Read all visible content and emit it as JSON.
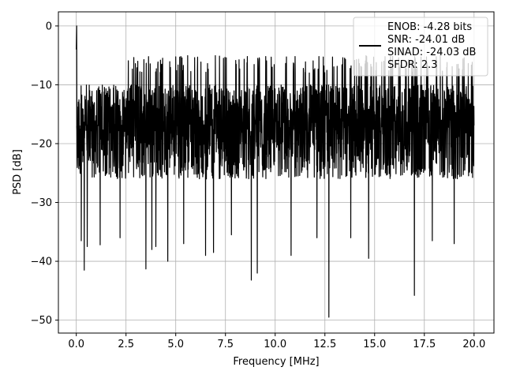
{
  "chart_data": {
    "type": "line",
    "title": "",
    "xlabel": "Frequency [MHz]",
    "ylabel": "PSD [dB]",
    "xlim": [
      -0.9,
      21.0
    ],
    "ylim": [
      -52.2,
      2.4
    ],
    "x_ticks": [
      0.0,
      2.5,
      5.0,
      7.5,
      10.0,
      12.5,
      15.0,
      17.5,
      20.0
    ],
    "x_tick_labels": [
      "0.0",
      "2.5",
      "5.0",
      "7.5",
      "10.0",
      "12.5",
      "15.0",
      "17.5",
      "20.0"
    ],
    "y_ticks": [
      0,
      -10,
      -20,
      -30,
      -40,
      -50
    ],
    "y_tick_labels": [
      "0",
      "−10",
      "−20",
      "−30",
      "−40",
      "−50"
    ],
    "grid": true,
    "legend_position": "top-right",
    "legend_lines": [
      "ENOB: -4.28 bits",
      "SNR: -24.01 dB",
      "SINAD: -24.03 dB",
      "SFDR: 2.3"
    ],
    "series": [
      {
        "color": "#000000",
        "x_range": [
          0.0,
          20.0
        ],
        "envelope_note_free": true,
        "peak": {
          "x": 0.02,
          "y": 0.0
        },
        "typical_upper_dB": -10,
        "typical_lower_dB": -26,
        "noise_floor_median_dB": -17,
        "notable_dips": [
          {
            "x": 0.25,
            "y": -36.5
          },
          {
            "x": 0.4,
            "y": -41.5
          },
          {
            "x": 0.55,
            "y": -37.5
          },
          {
            "x": 1.2,
            "y": -37.2
          },
          {
            "x": 2.2,
            "y": -36.0
          },
          {
            "x": 3.5,
            "y": -41.3
          },
          {
            "x": 3.8,
            "y": -38.0
          },
          {
            "x": 4.0,
            "y": -37.5
          },
          {
            "x": 4.6,
            "y": -40.0
          },
          {
            "x": 5.4,
            "y": -37.0
          },
          {
            "x": 6.5,
            "y": -39.0
          },
          {
            "x": 6.9,
            "y": -38.5
          },
          {
            "x": 7.8,
            "y": -35.5
          },
          {
            "x": 8.8,
            "y": -43.2
          },
          {
            "x": 9.1,
            "y": -42.0
          },
          {
            "x": 10.8,
            "y": -39.0
          },
          {
            "x": 12.1,
            "y": -36.0
          },
          {
            "x": 12.7,
            "y": -49.5
          },
          {
            "x": 13.8,
            "y": -36.0
          },
          {
            "x": 14.7,
            "y": -39.5
          },
          {
            "x": 17.0,
            "y": -45.8
          },
          {
            "x": 17.9,
            "y": -36.5
          },
          {
            "x": 19.0,
            "y": -37.0
          }
        ],
        "notable_peaks": [
          {
            "x": 3.2,
            "y": -7.8
          },
          {
            "x": 4.3,
            "y": -6.5
          },
          {
            "x": 5.2,
            "y": -5.3
          },
          {
            "x": 6.1,
            "y": -5.3
          },
          {
            "x": 7.4,
            "y": -5.5
          },
          {
            "x": 8.6,
            "y": -5.2
          },
          {
            "x": 9.8,
            "y": -5.3
          },
          {
            "x": 11.0,
            "y": -5.2
          },
          {
            "x": 12.2,
            "y": -5.2
          },
          {
            "x": 13.4,
            "y": -5.4
          },
          {
            "x": 14.6,
            "y": -5.2
          },
          {
            "x": 15.8,
            "y": -5.1
          },
          {
            "x": 17.0,
            "y": -5.3
          },
          {
            "x": 18.3,
            "y": -5.0
          },
          {
            "x": 19.5,
            "y": -5.4
          }
        ]
      }
    ]
  }
}
